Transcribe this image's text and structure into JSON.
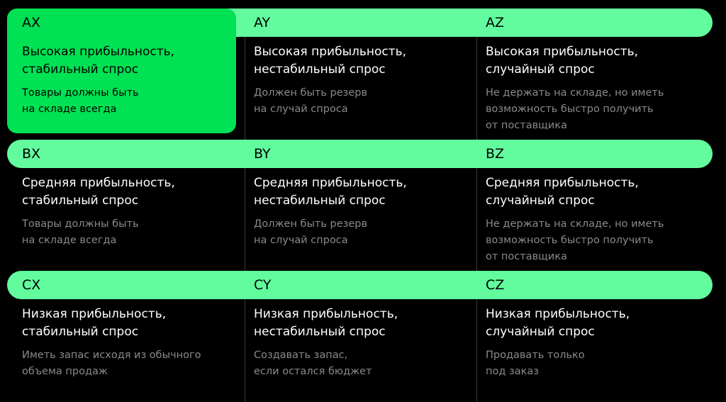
{
  "rows": [
    {
      "cells": [
        {
          "code": "AX",
          "title": [
            "Высокая прибыльность,",
            "стабильный спрос"
          ],
          "note": [
            "Товары должны быть",
            "на складе всегда"
          ]
        },
        {
          "code": "AY",
          "title": [
            "Высокая прибыльность,",
            "нестабильный спрос"
          ],
          "note": [
            "Должен быть резерв",
            "на случай спроса"
          ]
        },
        {
          "code": "AZ",
          "title": [
            "Высокая прибыльность,",
            "случайный спрос"
          ],
          "note": [
            "Не держать на складе, но иметь",
            "возможность быстро получить",
            "от поставщика"
          ]
        }
      ]
    },
    {
      "cells": [
        {
          "code": "BX",
          "title": [
            "Средняя прибыльность,",
            "стабильный спрос"
          ],
          "note": [
            "Товары должны быть",
            "на складе всегда"
          ]
        },
        {
          "code": "BY",
          "title": [
            "Средняя прибыльность,",
            "нестабильный спрос"
          ],
          "note": [
            "Должен быть резерв",
            "на случай спроса"
          ]
        },
        {
          "code": "BZ",
          "title": [
            "Средняя прибыльность,",
            "случайный спрос"
          ],
          "note": [
            "Не держать на складе, но иметь",
            "возможность быстро получить",
            "от поставщика"
          ]
        }
      ]
    },
    {
      "cells": [
        {
          "code": "CX",
          "title": [
            "Низкая прибыльность,",
            "стабильный спрос"
          ],
          "note": [
            "Иметь запас исходя из обычного",
            "объема продаж"
          ]
        },
        {
          "code": "CY",
          "title": [
            "Низкая прибыльность,",
            "нестабильный спрос"
          ],
          "note": [
            "Создавать запас,",
            "если остался бюджет"
          ]
        },
        {
          "code": "CZ",
          "title": [
            "Низкая прибыльность,",
            "случайный спрос"
          ],
          "note": [
            "Продавать только",
            "под заказ"
          ]
        }
      ]
    }
  ]
}
